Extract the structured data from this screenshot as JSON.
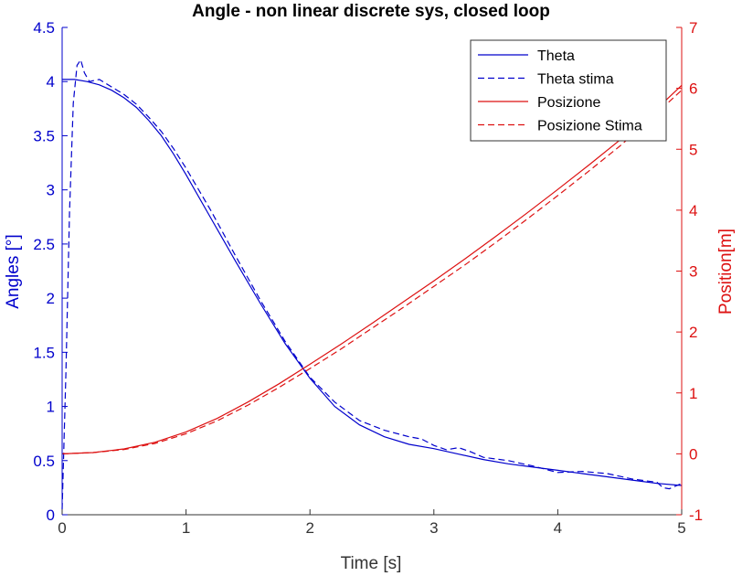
{
  "chart_data": {
    "type": "line",
    "title": "Angle - non linear discrete sys, closed loop",
    "xlabel": "Time [s]",
    "ylabel_left": "Angles [°]",
    "ylabel_right": "Position[m]",
    "xlim": [
      0,
      5
    ],
    "ylim_left": [
      0,
      4.5
    ],
    "ylim_right": [
      -1,
      7
    ],
    "grid": false,
    "legend_position": "top-right",
    "x_ticks": [
      "0",
      "1",
      "2",
      "3",
      "4",
      "5"
    ],
    "y_left_ticks": [
      "0",
      "0.5",
      "1",
      "1.5",
      "2",
      "2.5",
      "3",
      "3.5",
      "4",
      "4.5"
    ],
    "y_right_ticks": [
      "-1",
      "0",
      "1",
      "2",
      "3",
      "4",
      "5",
      "6",
      "7"
    ],
    "colors": {
      "theta": "#0000cc",
      "position": "#dd1111",
      "left_axis": "#0000cc",
      "right_axis": "#dd1111"
    },
    "series": [
      {
        "name": "Theta",
        "axis": "left",
        "style": "solid",
        "color": "#0000cc",
        "x": [
          0,
          0.1,
          0.2,
          0.3,
          0.4,
          0.5,
          0.6,
          0.7,
          0.8,
          0.9,
          1.0,
          1.2,
          1.4,
          1.6,
          1.8,
          2.0,
          2.2,
          2.4,
          2.6,
          2.8,
          3.0,
          3.2,
          3.4,
          3.6,
          3.8,
          4.0,
          4.2,
          4.4,
          4.6,
          4.8,
          5.0
        ],
        "y": [
          4.02,
          4.02,
          4.0,
          3.97,
          3.92,
          3.85,
          3.76,
          3.64,
          3.5,
          3.33,
          3.14,
          2.74,
          2.34,
          1.95,
          1.58,
          1.26,
          1.0,
          0.83,
          0.72,
          0.65,
          0.61,
          0.56,
          0.51,
          0.47,
          0.44,
          0.41,
          0.38,
          0.35,
          0.32,
          0.29,
          0.27
        ]
      },
      {
        "name": "Theta stima",
        "axis": "left",
        "style": "dashed",
        "color": "#0000cc",
        "x": [
          0,
          0.03,
          0.06,
          0.09,
          0.12,
          0.15,
          0.18,
          0.22,
          0.3,
          0.4,
          0.5,
          0.6,
          0.7,
          0.8,
          0.9,
          1.0,
          1.2,
          1.4,
          1.6,
          1.8,
          2.0,
          2.2,
          2.4,
          2.6,
          2.8,
          2.9,
          3.0,
          3.1,
          3.2,
          3.3,
          3.4,
          3.6,
          3.8,
          4.0,
          4.2,
          4.4,
          4.6,
          4.8,
          4.85,
          4.9,
          5.0
        ],
        "y": [
          0.05,
          1.3,
          2.8,
          3.8,
          4.15,
          4.2,
          4.08,
          4.0,
          4.02,
          3.95,
          3.88,
          3.79,
          3.67,
          3.54,
          3.38,
          3.2,
          2.81,
          2.39,
          1.98,
          1.6,
          1.27,
          1.04,
          0.87,
          0.78,
          0.72,
          0.7,
          0.64,
          0.6,
          0.62,
          0.58,
          0.53,
          0.5,
          0.45,
          0.39,
          0.4,
          0.38,
          0.33,
          0.3,
          0.25,
          0.24,
          0.29
        ]
      },
      {
        "name": "Posizione",
        "axis": "right",
        "style": "solid",
        "color": "#dd1111",
        "x": [
          0,
          0.25,
          0.5,
          0.75,
          1.0,
          1.25,
          1.5,
          1.75,
          2.0,
          2.25,
          2.5,
          2.75,
          3.0,
          3.25,
          3.5,
          3.75,
          4.0,
          4.25,
          4.5,
          4.75,
          5.0
        ],
        "y": [
          0.0,
          0.02,
          0.08,
          0.19,
          0.36,
          0.58,
          0.85,
          1.15,
          1.47,
          1.8,
          2.14,
          2.49,
          2.84,
          3.2,
          3.57,
          3.95,
          4.34,
          4.74,
          5.15,
          5.57,
          6.05
        ]
      },
      {
        "name": "Posizione Stima",
        "axis": "right",
        "style": "dashed",
        "color": "#dd1111",
        "x": [
          0,
          0.25,
          0.5,
          0.75,
          1.0,
          1.25,
          1.5,
          1.75,
          2.0,
          2.25,
          2.5,
          2.75,
          3.0,
          3.25,
          3.5,
          3.75,
          4.0,
          4.25,
          4.5,
          4.75,
          5.0
        ],
        "y": [
          0.0,
          0.02,
          0.07,
          0.17,
          0.33,
          0.54,
          0.8,
          1.09,
          1.4,
          1.72,
          2.06,
          2.4,
          2.75,
          3.1,
          3.47,
          3.85,
          4.24,
          4.64,
          5.05,
          5.5,
          5.97
        ]
      }
    ]
  }
}
